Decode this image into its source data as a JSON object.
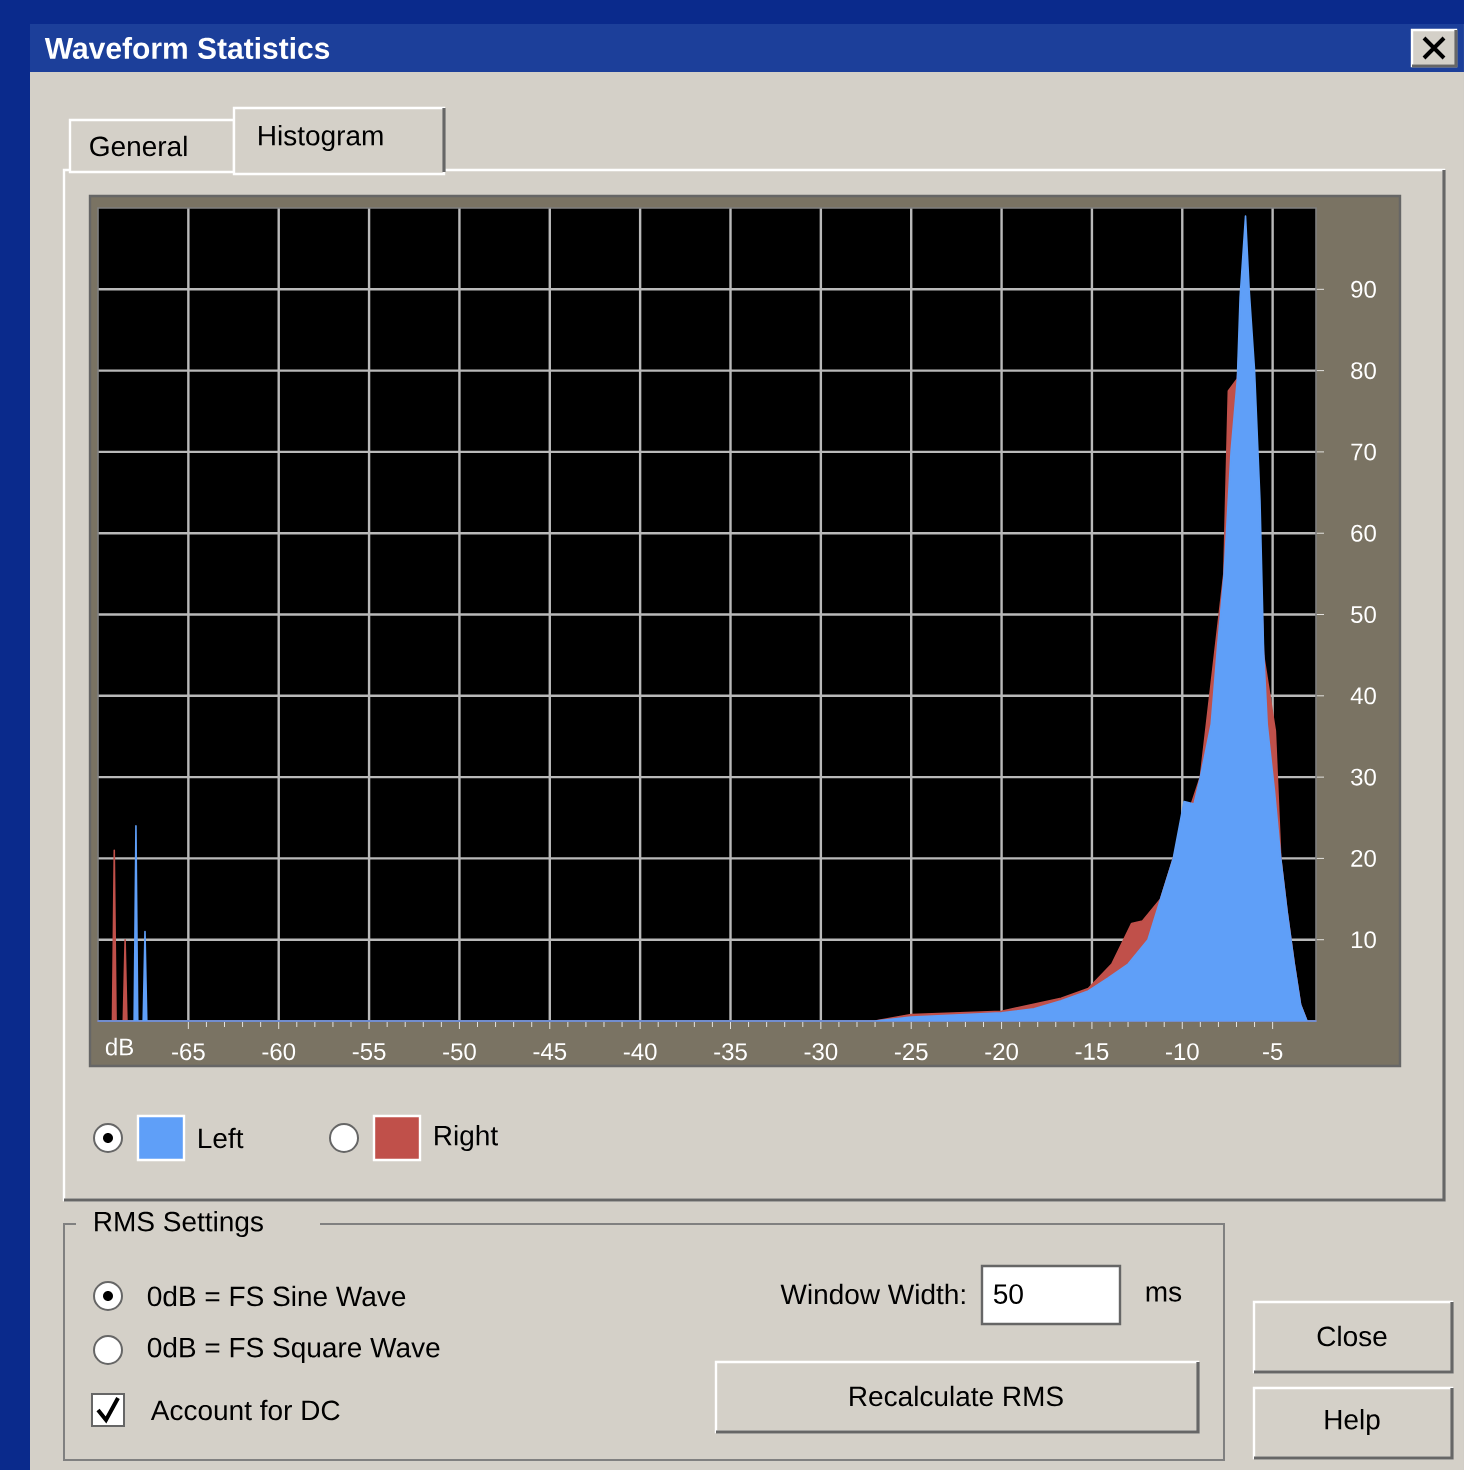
{
  "chart_data": {
    "type": "area",
    "title": "Waveform Statistics",
    "xlabel": "dB",
    "xlim": [
      -70,
      -2.6
    ],
    "ylim": [
      0,
      100
    ],
    "xticks": [
      -65,
      -60,
      -55,
      -50,
      -45,
      -40,
      -35,
      -30,
      -25,
      -20,
      -15,
      -10,
      -5
    ],
    "yticks": [
      10,
      20,
      30,
      40,
      50,
      60,
      70,
      80,
      90
    ],
    "grid": true,
    "legend": "bottom left",
    "series": [
      {
        "name": "Right",
        "color": "#c0504a",
        "x": [
          -70,
          -69.2,
          -69.1,
          -69.0,
          -68.6,
          -68.5,
          -68.4,
          -27,
          -25,
          -20,
          -16.7,
          -15.2,
          -13.9,
          -12.8,
          -12.2,
          -11.2,
          -10.5,
          -9.8,
          -9.0,
          -8.2,
          -7.7,
          -7.45,
          -6.95,
          -6.5,
          -6.0,
          -5.5,
          -5.05,
          -4.85,
          -4.55,
          -4.2,
          -3.8,
          -3.45,
          -3.1,
          -2.6
        ],
        "values": [
          0,
          0,
          21,
          0,
          0,
          10,
          0,
          0,
          0.8,
          1.2,
          2.8,
          4,
          7,
          12,
          12.3,
          15,
          20,
          null,
          30,
          null,
          55,
          77.5,
          79,
          95,
          78,
          45,
          null,
          35.7,
          20,
          13.5,
          7,
          2,
          0,
          0
        ]
      },
      {
        "name": "Left",
        "color": "#5f9ff8",
        "x": [
          -70,
          -68.0,
          -67.9,
          -67.8,
          -67.5,
          -67.4,
          -67.3,
          -27,
          -25,
          -20,
          -18.2,
          -16.7,
          -15.2,
          -14.1,
          -13,
          -11.9,
          -11.2,
          -10.5,
          -9.9,
          -9.35,
          -9.0,
          -8.4,
          -8.05,
          -7.7,
          -7.3,
          -6.95,
          -6.8,
          -6.5,
          -6.3,
          -6.0,
          -5.7,
          -5.5,
          -5.3,
          -4.9,
          -4.55,
          -4.2,
          -3.8,
          -3.45,
          -3.1,
          -2.6
        ],
        "values": [
          0,
          0,
          24,
          0,
          0,
          11,
          0,
          0,
          0.5,
          1,
          1.5,
          2.5,
          3.7,
          5.3,
          7,
          10,
          15,
          20,
          27,
          26.7,
          30,
          36.5,
          46,
          54.5,
          70,
          79,
          89,
          99,
          90,
          80,
          64,
          45.5,
          36.5,
          28.3,
          20,
          13.5,
          7,
          2,
          0,
          0
        ]
      }
    ],
    "annotations": [
      "General",
      "Histogram",
      "RMS Settings",
      "0dB = FS Sine Wave",
      "0dB = FS Square Wave",
      "Account for DC",
      "Window Width:",
      "50",
      "ms",
      "Recalculate RMS",
      "Close",
      "Help"
    ]
  }
}
